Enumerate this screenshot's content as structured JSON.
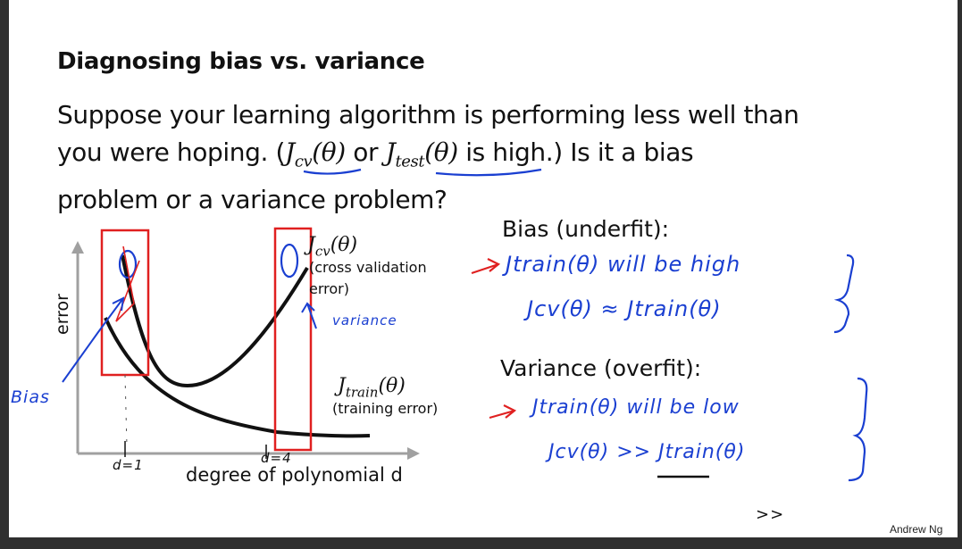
{
  "slide": {
    "title": "Diagnosing bias vs. variance",
    "body_line1": "Suppose your learning algorithm is performing less well than",
    "body_line2_a": "you were hoping. (",
    "jcv_symbol": "J",
    "jcv_sub": "cv",
    "theta_arg": "(θ)",
    "or_word": " or ",
    "jtest_symbol": "J",
    "jtest_sub": "test",
    "body_line2_b": " is high.)  Is it a bias",
    "body_line3": "problem or a variance problem?"
  },
  "plot": {
    "y_axis_label": "error",
    "x_axis_label": "degree of polynomial d",
    "cv_curve_symbol": "J",
    "cv_curve_sub": "cv",
    "cv_curve_desc_1": "(cross validation",
    "cv_curve_desc_2": "error)",
    "train_curve_symbol": "J",
    "train_curve_sub": "train",
    "train_curve_desc": "(training error)",
    "ann_bias": "Bias",
    "ann_variance": "variance",
    "ann_d1": "d=1",
    "ann_d4": "d=4"
  },
  "right": {
    "bias_heading": "Bias (underfit):",
    "bias_note_1": "Jtrain(θ) will be high",
    "bias_note_2": "Jcv(θ) ≈ Jtrain(θ)",
    "variance_heading": "Variance (overfit):",
    "variance_note_1": "Jtrain(θ) will be low",
    "variance_note_2": "Jcv(θ) >> Jtrain(θ)",
    "extra_mark": ">>"
  },
  "footer": {
    "author": "Andrew Ng"
  },
  "colors": {
    "ink_blue": "#1a3fd1",
    "box_red": "#e02020",
    "axis_gray": "#a0a0a0",
    "curve_black": "#111111"
  }
}
